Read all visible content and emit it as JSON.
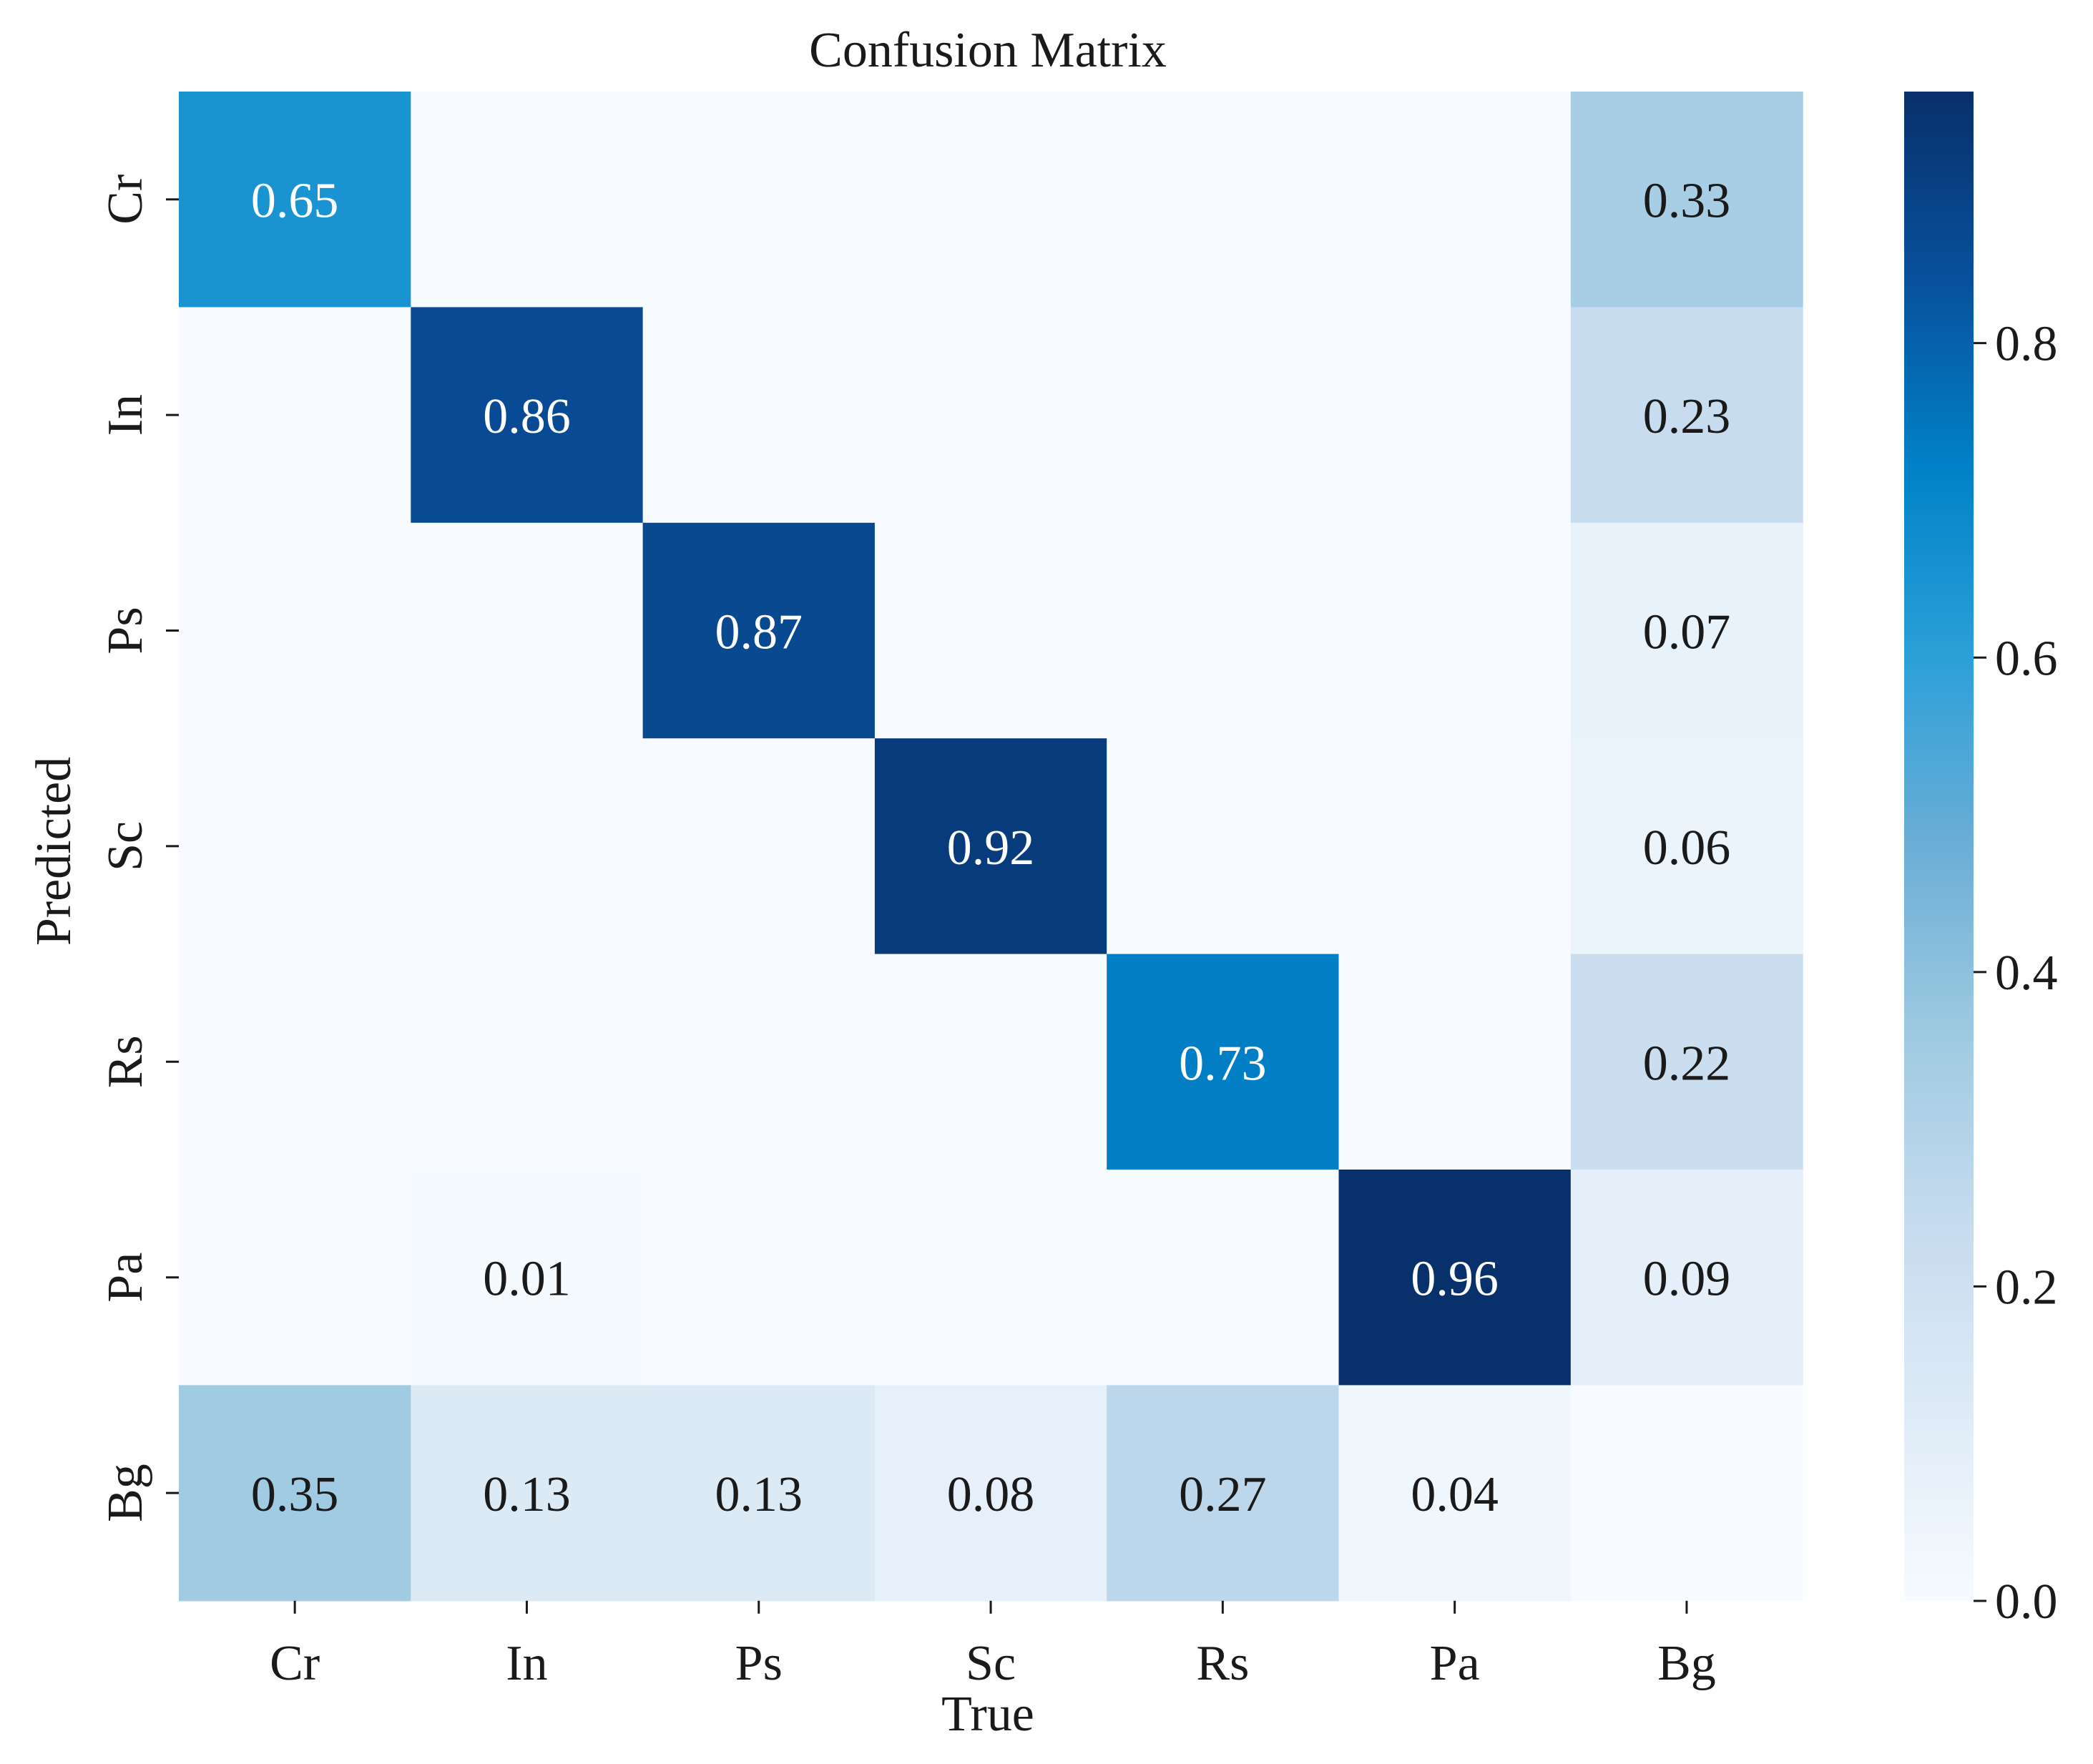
{
  "chart_data": {
    "type": "heatmap",
    "title": "Confusion Matrix",
    "xlabel": "True",
    "ylabel": "Predicted",
    "x_categories": [
      "Cr",
      "In",
      "Ps",
      "Sc",
      "Rs",
      "Pa",
      "Bg"
    ],
    "y_categories": [
      "Cr",
      "In",
      "Ps",
      "Sc",
      "Rs",
      "Pa",
      "Bg"
    ],
    "values": [
      [
        0.65,
        0.0,
        0.0,
        0.0,
        0.0,
        0.0,
        0.33
      ],
      [
        0.0,
        0.86,
        0.0,
        0.0,
        0.0,
        0.0,
        0.23
      ],
      [
        0.0,
        0.0,
        0.87,
        0.0,
        0.0,
        0.0,
        0.07
      ],
      [
        0.0,
        0.0,
        0.0,
        0.92,
        0.0,
        0.0,
        0.06
      ],
      [
        0.0,
        0.0,
        0.0,
        0.0,
        0.73,
        0.0,
        0.22
      ],
      [
        0.0,
        0.01,
        0.0,
        0.0,
        0.0,
        0.96,
        0.09
      ],
      [
        0.35,
        0.13,
        0.13,
        0.08,
        0.27,
        0.04,
        0.0
      ]
    ],
    "labels": [
      [
        "0.65",
        "",
        "",
        "",
        "",
        "",
        "0.33"
      ],
      [
        "",
        "0.86",
        "",
        "",
        "",
        "",
        "0.23"
      ],
      [
        "",
        "",
        "0.87",
        "",
        "",
        "",
        "0.07"
      ],
      [
        "",
        "",
        "",
        "0.92",
        "",
        "",
        "0.06"
      ],
      [
        "",
        "",
        "",
        "",
        "0.73",
        "",
        "0.22"
      ],
      [
        "",
        "0.01",
        "",
        "",
        "",
        "0.96",
        "0.09"
      ],
      [
        "0.35",
        "0.13",
        "0.13",
        "0.08",
        "0.27",
        "0.04",
        ""
      ]
    ],
    "colorbar": {
      "range": [
        0.0,
        0.96
      ],
      "ticks": [
        0.0,
        0.2,
        0.4,
        0.6,
        0.8
      ],
      "tick_labels": [
        "0.0",
        "0.2",
        "0.4",
        "0.6",
        "0.8"
      ]
    },
    "colormap": "Blues",
    "colormap_stops": [
      "#f7fbff",
      "#deebf7",
      "#c6dbef",
      "#9ecae1",
      "#6baed6",
      "#2ca0d8",
      "#0082c8",
      "#08519c",
      "#08306b"
    ],
    "text_dark_color": "#1a1a1a",
    "text_light_color": "#ffffff"
  }
}
